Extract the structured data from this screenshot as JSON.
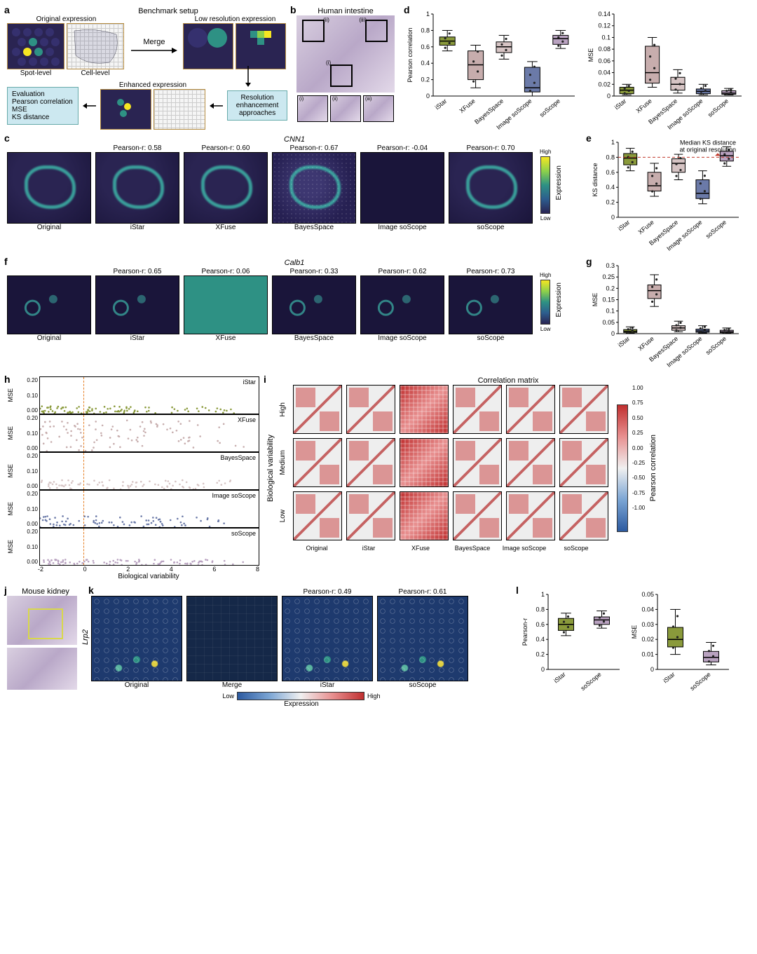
{
  "methods": [
    "iStar",
    "XFuse",
    "BayesSpace",
    "Image soScope",
    "soScope"
  ],
  "method_colors": {
    "iStar": "#8a9a3b",
    "XFuse": "#c7adad",
    "BayesSpace": "#d6c4c4",
    "Image_soScope": "#6b7aa8",
    "soScope": "#b9a2c0"
  },
  "panel_a": {
    "title": "Benchmark setup",
    "labels": {
      "original": "Original expression",
      "spot": "Spot-level",
      "cell": "Cell-level",
      "merge_arrow": "Merge",
      "lowres": "Low resolution expression",
      "enhanced": "Enhanced expression",
      "eval_title": "Evaluation",
      "eval_items": [
        "Pearson correlation",
        "MSE",
        "KS distance"
      ],
      "res_box": "Resolution\nenhancement\napproaches"
    }
  },
  "panel_b": {
    "title": "Human intestine",
    "insets": [
      "(i)",
      "(ii)",
      "(iii)"
    ]
  },
  "panel_c": {
    "gene": "CNN1",
    "columns": [
      "Original",
      "iStar",
      "XFuse",
      "BayesSpace",
      "Image soScope",
      "soScope"
    ],
    "pearson": [
      null,
      0.58,
      0.6,
      0.67,
      -0.04,
      0.7
    ],
    "cbar": {
      "label": "Expression",
      "low": "Low",
      "high": "High"
    }
  },
  "panel_d": {
    "pearson_ylabel": "Pearson correlation",
    "pearson_ylim": [
      0,
      1.0
    ],
    "pearson_ticks": [
      0,
      0.2,
      0.4,
      0.6,
      0.8,
      1.0
    ],
    "pearson_boxes": {
      "iStar": {
        "q1": 0.62,
        "med": 0.67,
        "q3": 0.72,
        "lo": 0.55,
        "hi": 0.8,
        "c": "#8a9a3b"
      },
      "XFuse": {
        "q1": 0.2,
        "med": 0.38,
        "q3": 0.55,
        "lo": 0.1,
        "hi": 0.62,
        "c": "#c7adad"
      },
      "BayesSpace": {
        "q1": 0.53,
        "med": 0.6,
        "q3": 0.66,
        "lo": 0.45,
        "hi": 0.74,
        "c": "#d6c4c4"
      },
      "Image soScope": {
        "q1": 0.05,
        "med": 0.1,
        "q3": 0.35,
        "lo": 0.0,
        "hi": 0.42,
        "c": "#6b7aa8"
      },
      "soScope": {
        "q1": 0.63,
        "med": 0.7,
        "q3": 0.74,
        "lo": 0.58,
        "hi": 0.8,
        "c": "#b9a2c0"
      }
    },
    "mse_ylabel": "MSE",
    "mse_ylim": [
      0,
      0.14
    ],
    "mse_ticks": [
      0,
      0.02,
      0.04,
      0.06,
      0.08,
      0.1,
      0.12,
      0.14
    ],
    "mse_boxes": {
      "iStar": {
        "q1": 0.004,
        "med": 0.01,
        "q3": 0.015,
        "lo": 0.002,
        "hi": 0.02,
        "c": "#8a9a3b"
      },
      "XFuse": {
        "q1": 0.022,
        "med": 0.04,
        "q3": 0.085,
        "lo": 0.015,
        "hi": 0.1,
        "c": "#c7adad"
      },
      "BayesSpace": {
        "q1": 0.01,
        "med": 0.02,
        "q3": 0.032,
        "lo": 0.005,
        "hi": 0.045,
        "c": "#d6c4c4"
      },
      "Image soScope": {
        "q1": 0.004,
        "med": 0.008,
        "q3": 0.012,
        "lo": 0.002,
        "hi": 0.02,
        "c": "#6b7aa8"
      },
      "soScope": {
        "q1": 0.003,
        "med": 0.005,
        "q3": 0.009,
        "lo": 0.002,
        "hi": 0.013,
        "c": "#b9a2c0"
      }
    }
  },
  "panel_e": {
    "ylabel": "KS distance",
    "ylim": [
      0,
      1.0
    ],
    "ticks": [
      0,
      0.2,
      0.4,
      0.6,
      0.8,
      1.0
    ],
    "ref_line": 0.8,
    "ref_label": "Median KS distance\nat original resolution",
    "boxes": {
      "iStar": {
        "q1": 0.7,
        "med": 0.79,
        "q3": 0.85,
        "lo": 0.62,
        "hi": 0.92,
        "c": "#8a9a3b"
      },
      "XFuse": {
        "q1": 0.35,
        "med": 0.42,
        "q3": 0.6,
        "lo": 0.28,
        "hi": 0.72,
        "c": "#c7adad"
      },
      "BayesSpace": {
        "q1": 0.6,
        "med": 0.72,
        "q3": 0.78,
        "lo": 0.5,
        "hi": 0.84,
        "c": "#d6c4c4"
      },
      "Image soScope": {
        "q1": 0.25,
        "med": 0.32,
        "q3": 0.5,
        "lo": 0.18,
        "hi": 0.62,
        "c": "#6b7aa8"
      },
      "soScope": {
        "q1": 0.75,
        "med": 0.82,
        "q3": 0.88,
        "lo": 0.68,
        "hi": 0.94,
        "c": "#b9a2c0"
      }
    }
  },
  "panel_f": {
    "gene": "Calb1",
    "columns": [
      "Original",
      "iStar",
      "XFuse",
      "BayesSpace",
      "Image soScope",
      "soScope"
    ],
    "pearson": [
      null,
      0.65,
      0.06,
      0.33,
      0.62,
      0.73
    ],
    "cbar": {
      "label": "Expression",
      "low": "Low",
      "high": "High"
    }
  },
  "panel_g": {
    "ylabel": "MSE",
    "ylim": [
      0,
      0.3
    ],
    "ticks": [
      0,
      0.05,
      0.1,
      0.15,
      0.2,
      0.25,
      0.3
    ],
    "boxes": {
      "iStar": {
        "q1": 0.005,
        "med": 0.01,
        "q3": 0.018,
        "lo": 0.002,
        "hi": 0.03,
        "c": "#8a9a3b"
      },
      "XFuse": {
        "q1": 0.155,
        "med": 0.19,
        "q3": 0.215,
        "lo": 0.12,
        "hi": 0.26,
        "c": "#c7adad"
      },
      "BayesSpace": {
        "q1": 0.015,
        "med": 0.025,
        "q3": 0.035,
        "lo": 0.008,
        "hi": 0.055,
        "c": "#d6c4c4"
      },
      "Image soScope": {
        "q1": 0.006,
        "med": 0.012,
        "q3": 0.02,
        "lo": 0.003,
        "hi": 0.035,
        "c": "#6b7aa8"
      },
      "soScope": {
        "q1": 0.004,
        "med": 0.008,
        "q3": 0.015,
        "lo": 0.002,
        "hi": 0.025,
        "c": "#b9a2c0"
      }
    }
  },
  "panel_h": {
    "xlabel": "Biological variability",
    "ylabel": "MSE",
    "xlim": [
      -2,
      8
    ],
    "xticks": [
      -2,
      0,
      2,
      4,
      6,
      8
    ],
    "ylim": [
      0,
      0.2
    ],
    "yticks": [
      0.0,
      0.1,
      0.2
    ],
    "panels": [
      {
        "name": "iStar",
        "c": "#8a9a3b",
        "spread": 0.04
      },
      {
        "name": "XFuse",
        "c": "#c7adad",
        "spread": 0.18
      },
      {
        "name": "BayesSpace",
        "c": "#d6c4c4",
        "spread": 0.05
      },
      {
        "name": "Image soScope",
        "c": "#6b7aa8",
        "spread": 0.06
      },
      {
        "name": "soScope",
        "c": "#b9a2c0",
        "spread": 0.03
      }
    ]
  },
  "panel_i": {
    "title": "Correlation matrix",
    "row_labels": [
      "High",
      "Medium",
      "Low"
    ],
    "ylabel": "Biological variability",
    "cols": [
      "Original",
      "iStar",
      "XFuse",
      "BayesSpace",
      "Image soScope",
      "soScope"
    ],
    "cbar_label": "Pearson correlation",
    "cbar_ticks": [
      -1.0,
      -0.75,
      -0.5,
      -0.25,
      0.0,
      0.25,
      0.5,
      0.75,
      1.0
    ]
  },
  "panel_j": {
    "title": "Mouse kidney"
  },
  "panel_k": {
    "gene": "Lrp2",
    "columns": [
      "Original",
      "Merge",
      "iStar",
      "soScope"
    ],
    "pearson": [
      null,
      null,
      0.49,
      0.61
    ],
    "cbar": {
      "label": "Expression",
      "low": "Low",
      "high": "High"
    }
  },
  "panel_l": {
    "pearson": {
      "ylabel": "Pearson-r",
      "ylim": [
        0,
        1.0
      ],
      "ticks": [
        0,
        0.2,
        0.4,
        0.6,
        0.8,
        1.0
      ],
      "boxes": {
        "iStar": {
          "q1": 0.52,
          "med": 0.6,
          "q3": 0.68,
          "lo": 0.45,
          "hi": 0.75,
          "c": "#8a9a3b"
        },
        "soScope": {
          "q1": 0.6,
          "med": 0.66,
          "q3": 0.7,
          "lo": 0.55,
          "hi": 0.78,
          "c": "#b9a2c0"
        }
      }
    },
    "mse": {
      "ylabel": "MSE",
      "ylim": [
        0,
        0.05
      ],
      "ticks": [
        0,
        0.01,
        0.02,
        0.03,
        0.04,
        0.05
      ],
      "boxes": {
        "iStar": {
          "q1": 0.015,
          "med": 0.02,
          "q3": 0.028,
          "lo": 0.01,
          "hi": 0.04,
          "c": "#8a9a3b"
        },
        "soScope": {
          "q1": 0.005,
          "med": 0.008,
          "q3": 0.012,
          "lo": 0.003,
          "hi": 0.018,
          "c": "#b9a2c0"
        }
      }
    }
  }
}
